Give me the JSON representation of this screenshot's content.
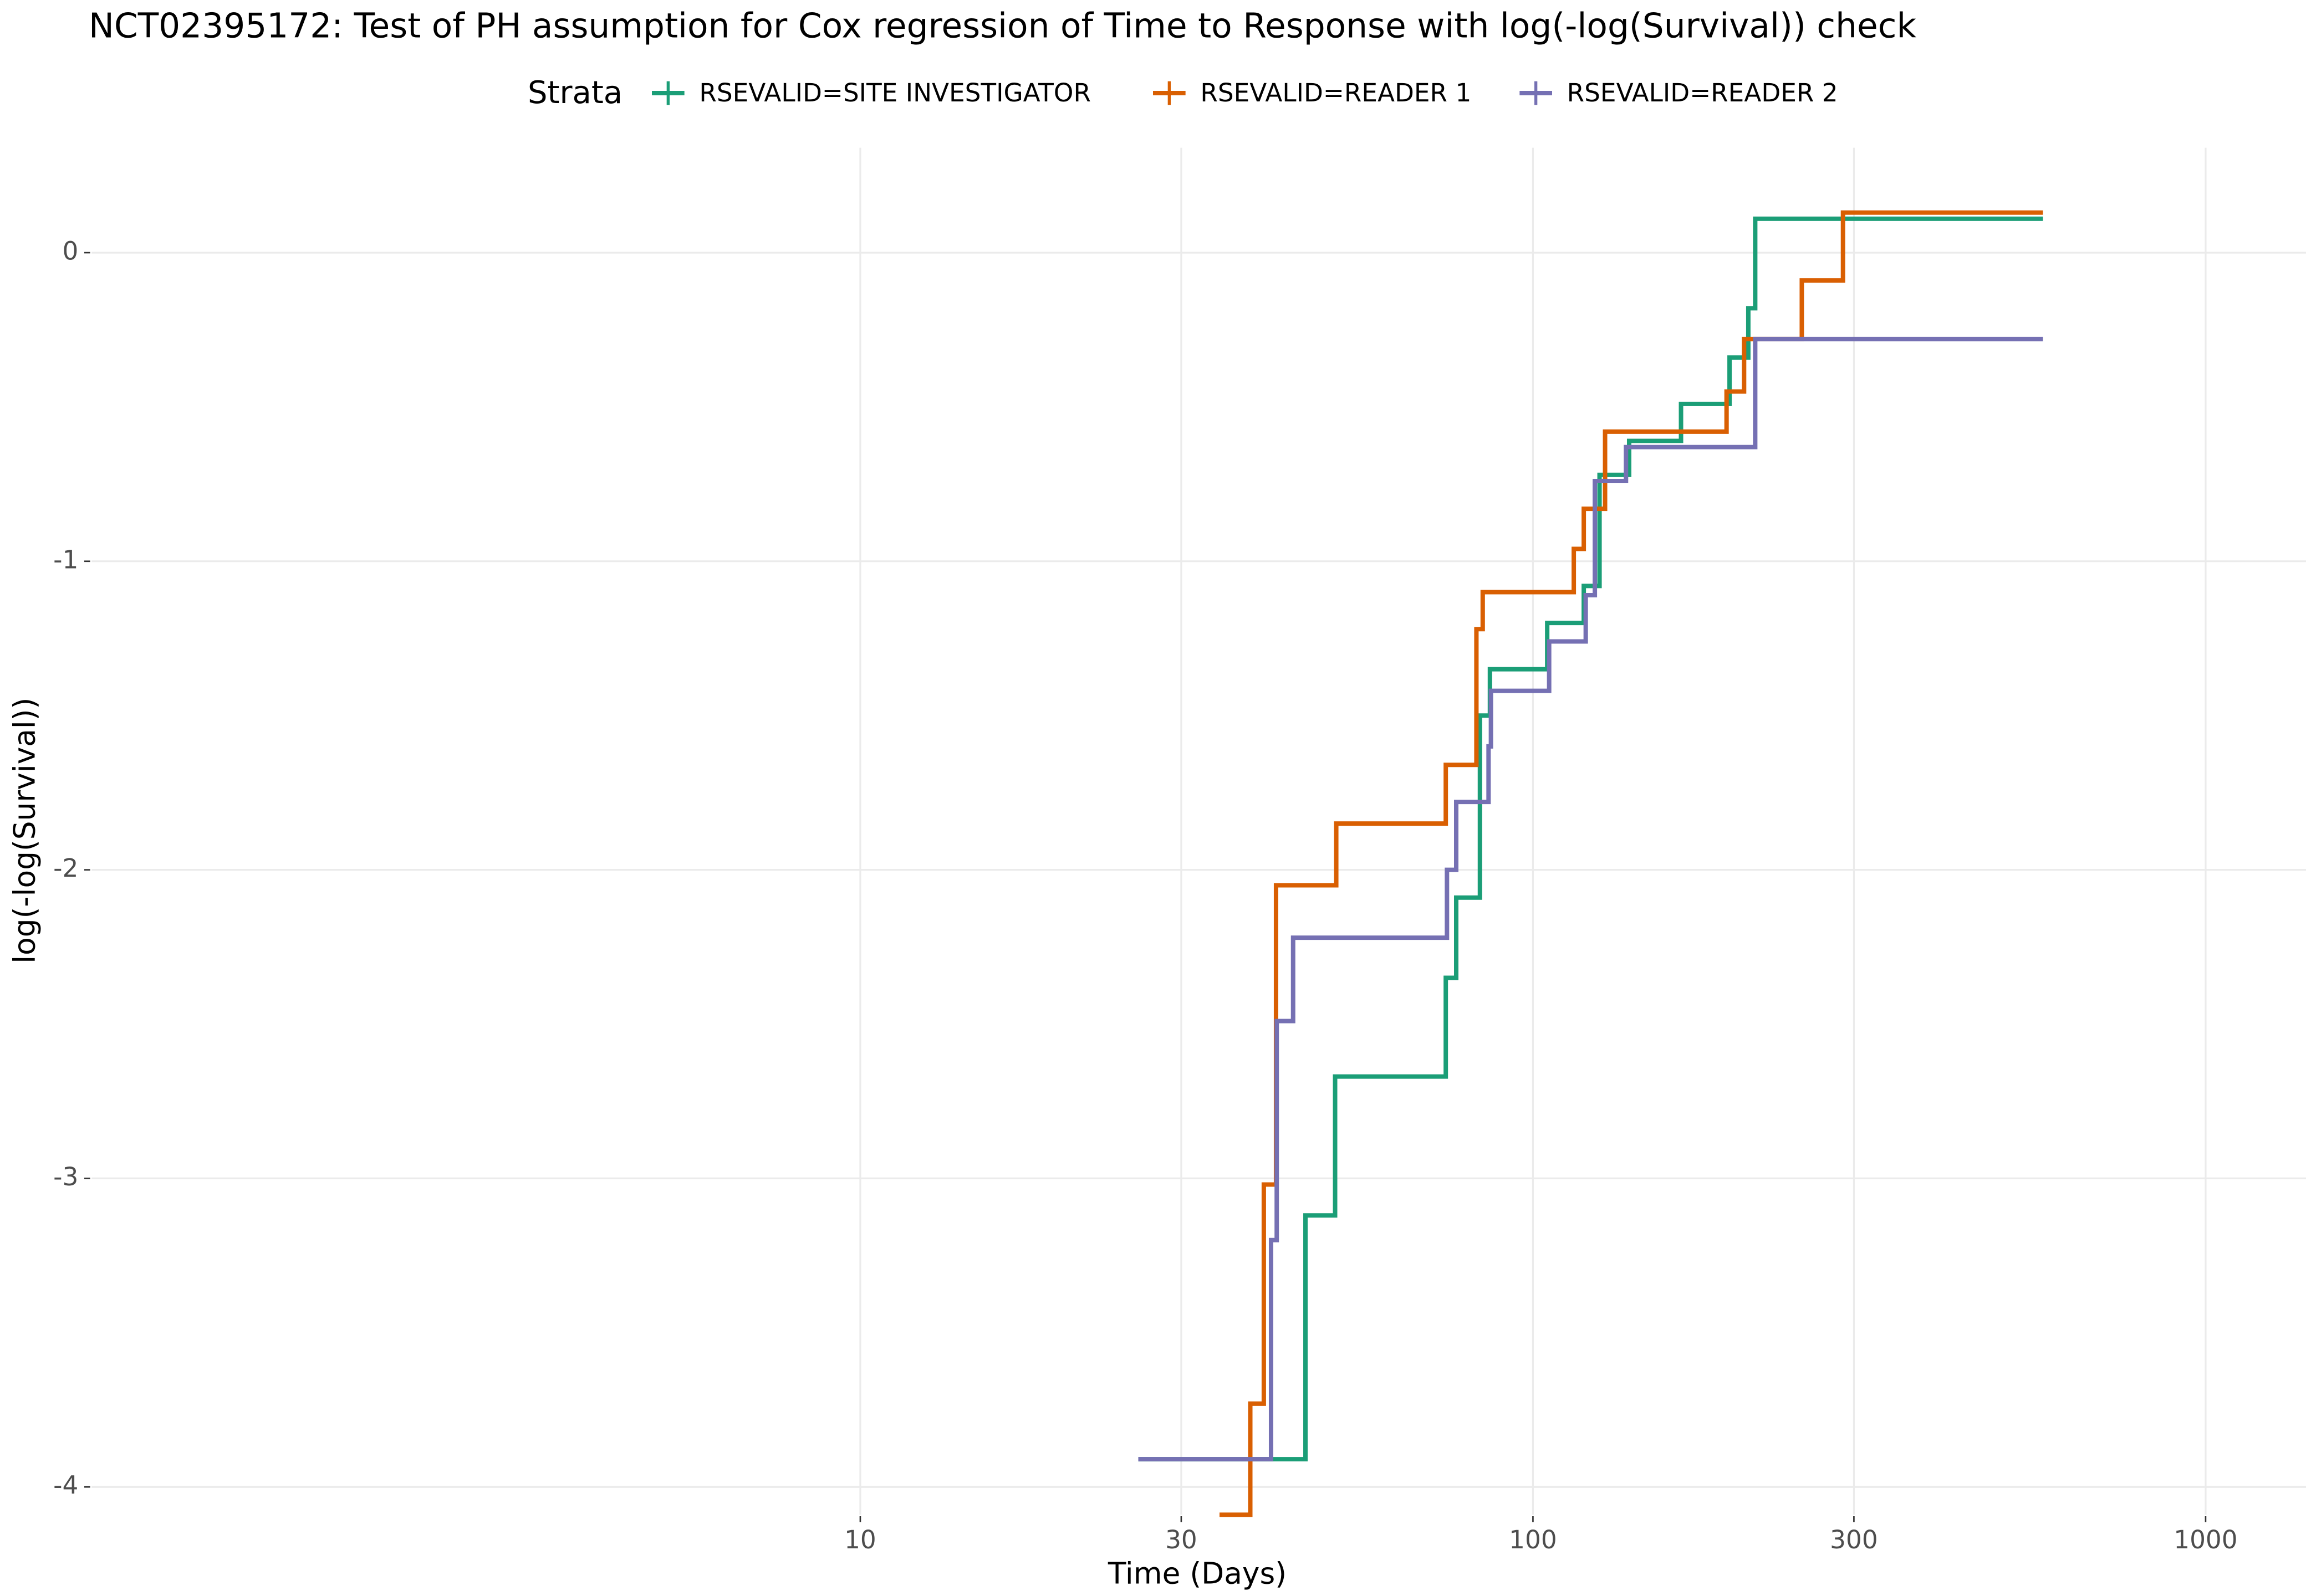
{
  "chart_data": {
    "type": "line",
    "step": "post",
    "title": "NCT02395172: Test of PH assumption for Cox regression of Time to Response with log(-log(Survival)) check",
    "xlabel": "Time (Days)",
    "ylabel": "log(-log(Survival))",
    "legend_title": "Strata",
    "legend_position": "top",
    "xscale": "log",
    "grid": true,
    "xlim": [
      0.72,
      1410
    ],
    "ylim": [
      -4.09,
      0.34
    ],
    "xticks": [
      10,
      30,
      100,
      300,
      1000
    ],
    "yticks": [
      0,
      -1,
      -2,
      -3,
      -4
    ],
    "series": [
      {
        "name": "RSEVALID=SITE INVESTIGATOR",
        "color": "#1b9e77",
        "x": [
          25.9,
          45.9,
          50.8,
          74.2,
          76.9,
          83.4,
          86.3,
          105,
          119,
          125.6,
          139,
          166,
          196,
          209,
          214,
          573
        ],
        "values": [
          -3.91,
          -3.12,
          -2.67,
          -2.35,
          -2.09,
          -1.5,
          -1.35,
          -1.2,
          -1.08,
          -0.72,
          -0.61,
          -0.49,
          -0.34,
          -0.18,
          0.11,
          0.11
        ]
      },
      {
        "name": "RSEVALID=READER 1",
        "color": "#d95f02",
        "x": [
          34.2,
          38.0,
          39.8,
          41.5,
          51.0,
          74.2,
          82.4,
          84.2,
          115,
          119,
          128,
          194,
          206,
          251,
          289,
          573
        ],
        "values": [
          -4.09,
          -3.73,
          -3.02,
          -2.05,
          -1.85,
          -1.66,
          -1.22,
          -1.1,
          -0.96,
          -0.83,
          -0.58,
          -0.45,
          -0.28,
          -0.09,
          0.13,
          0.13
        ]
      },
      {
        "name": "RSEVALID=READER 2",
        "color": "#7570b3",
        "x": [
          25.9,
          40.8,
          41.6,
          44.0,
          74.5,
          76.9,
          85.9,
          86.6,
          105.7,
          119.8,
          123.6,
          137.5,
          214,
          573
        ],
        "values": [
          -3.91,
          -3.2,
          -2.49,
          -2.22,
          -2.0,
          -1.78,
          -1.6,
          -1.42,
          -1.26,
          -1.11,
          -0.74,
          -0.63,
          -0.28,
          -0.28
        ]
      }
    ]
  }
}
